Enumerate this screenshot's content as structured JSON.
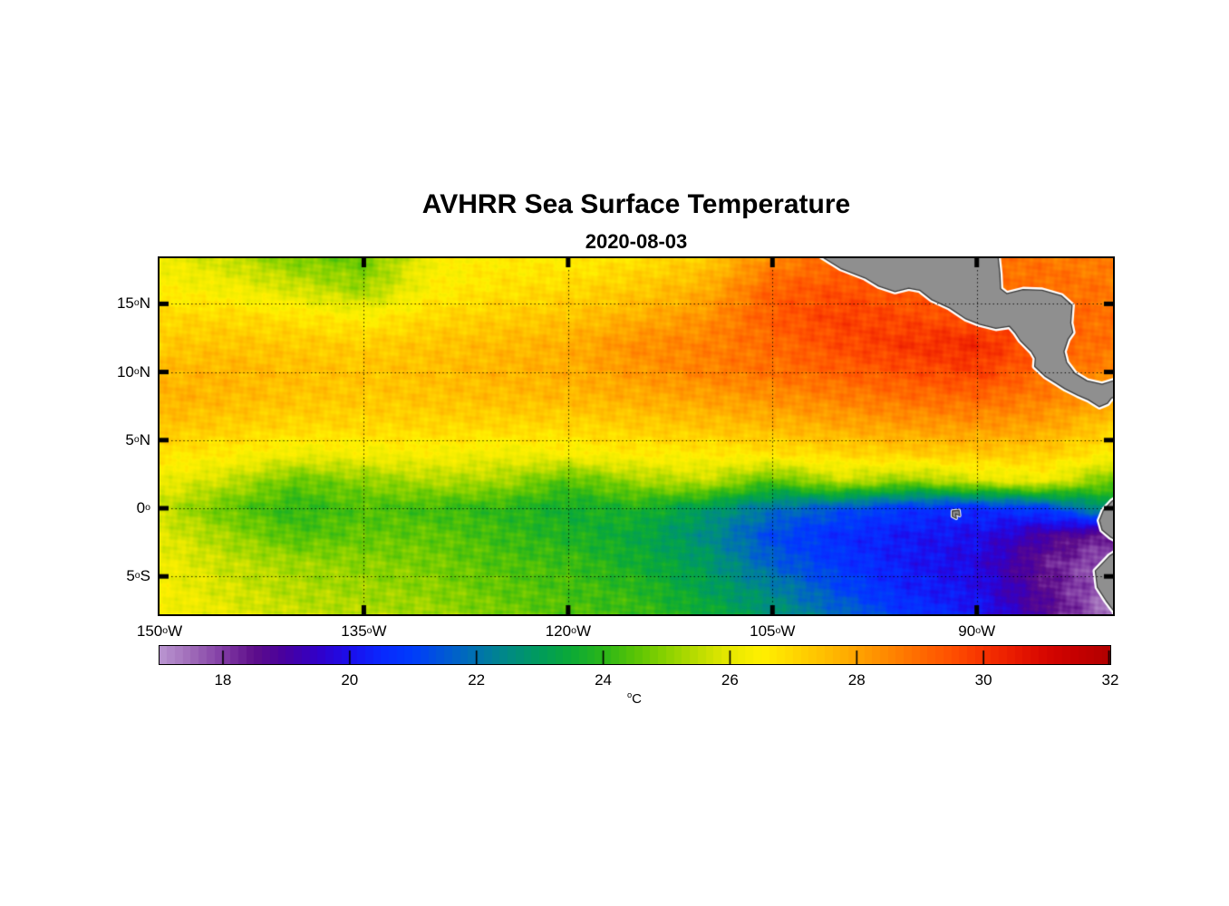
{
  "chart_data": {
    "type": "heatmap",
    "title": "AVHRR Sea Surface Temperature",
    "subtitle": "2020-08-03",
    "unit": {
      "sup": "o",
      "text": "C"
    },
    "degree_char": "o",
    "lon_range": [
      -150,
      -80
    ],
    "lat_range": [
      18.35,
      -7.78
    ],
    "grid_lons": [
      -150,
      -145,
      -140,
      -135,
      -130,
      -125,
      -120,
      -115,
      -110,
      -105,
      -100,
      -95,
      -90,
      -85,
      -80
    ],
    "grid_lats": [
      18.4,
      16,
      14,
      12,
      10,
      8,
      6,
      4,
      2,
      0,
      -2,
      -4,
      -6,
      -7.8
    ],
    "sst_grid": [
      [
        26.2,
        25.6,
        24.8,
        24.6,
        26.3,
        26.6,
        26.5,
        26.8,
        27.2,
        28.5,
        29.0,
        29.0,
        28.8,
        28.8,
        28.6
      ],
      [
        26.5,
        26.3,
        25.8,
        25.2,
        26.5,
        26.8,
        27.0,
        27.3,
        27.8,
        29.2,
        29.5,
        29.3,
        29.0,
        29.0,
        28.8
      ],
      [
        27.0,
        27.0,
        26.8,
        26.5,
        27.0,
        27.2,
        27.4,
        27.8,
        28.3,
        29.3,
        29.8,
        29.6,
        29.5,
        29.2,
        28.9
      ],
      [
        27.3,
        27.4,
        27.3,
        27.2,
        27.4,
        27.6,
        27.8,
        28.4,
        28.6,
        29.0,
        29.6,
        30.0,
        30.2,
        29.3,
        28.8
      ],
      [
        27.6,
        27.7,
        27.5,
        27.4,
        27.5,
        27.7,
        27.8,
        28.2,
        28.6,
        28.9,
        29.2,
        29.5,
        29.8,
        29.0,
        28.5
      ],
      [
        27.8,
        27.6,
        27.4,
        27.3,
        27.4,
        27.5,
        27.6,
        27.8,
        28.0,
        28.3,
        28.6,
        28.9,
        29.0,
        28.6,
        28.0
      ],
      [
        27.4,
        27.2,
        27.0,
        27.0,
        27.0,
        27.0,
        27.0,
        27.2,
        27.4,
        27.6,
        27.9,
        28.1,
        28.2,
        28.0,
        27.2
      ],
      [
        26.8,
        26.6,
        26.2,
        26.3,
        26.4,
        26.2,
        26.4,
        26.6,
        26.6,
        26.8,
        27.0,
        27.2,
        27.3,
        27.2,
        26.6
      ],
      [
        26.2,
        25.6,
        24.6,
        25.0,
        25.4,
        25.3,
        24.4,
        25.2,
        25.6,
        24.4,
        25.6,
        25.0,
        25.8,
        26.2,
        24.6
      ],
      [
        25.6,
        24.6,
        24.0,
        24.4,
        24.2,
        24.0,
        23.6,
        23.8,
        23.0,
        22.0,
        21.4,
        20.8,
        20.6,
        21.0,
        23.0
      ],
      [
        26.0,
        25.2,
        24.4,
        24.6,
        24.6,
        24.2,
        23.8,
        23.4,
        22.6,
        21.2,
        20.6,
        20.2,
        20.0,
        19.0,
        18.2
      ],
      [
        26.2,
        25.6,
        25.2,
        25.0,
        24.8,
        24.4,
        24.2,
        23.6,
        23.0,
        21.6,
        20.8,
        20.2,
        19.8,
        18.4,
        17.6
      ],
      [
        26.3,
        25.8,
        25.4,
        25.2,
        25.0,
        24.6,
        24.3,
        24.0,
        23.2,
        22.4,
        21.2,
        20.4,
        20.0,
        18.6,
        17.4
      ],
      [
        26.4,
        26.0,
        25.6,
        25.4,
        25.2,
        24.8,
        24.4,
        24.2,
        23.6,
        22.8,
        21.8,
        20.8,
        20.2,
        18.8,
        17.2
      ]
    ],
    "gridlines": {
      "lons": [
        -135,
        -120,
        -105,
        -90
      ],
      "lats": [
        15,
        10,
        5,
        0,
        -5
      ]
    },
    "x_ticks": [
      {
        "v": -150,
        "num": "150",
        "suffix": "W"
      },
      {
        "v": -135,
        "num": "135",
        "suffix": "W"
      },
      {
        "v": -120,
        "num": "120",
        "suffix": "W"
      },
      {
        "v": -105,
        "num": "105",
        "suffix": "W"
      },
      {
        "v": -90,
        "num": "90",
        "suffix": "W"
      }
    ],
    "y_ticks": [
      {
        "v": 15,
        "num": "15",
        "suffix": "N"
      },
      {
        "v": 10,
        "num": "10",
        "suffix": "N"
      },
      {
        "v": 5,
        "num": "5",
        "suffix": "N"
      },
      {
        "v": 0,
        "num": "0",
        "suffix": ""
      },
      {
        "v": -5,
        "num": "5",
        "suffix": "S"
      }
    ],
    "colorbar": {
      "min": 17,
      "max": 32,
      "segments": 120,
      "ticks": [
        18,
        20,
        22,
        24,
        26,
        28,
        30,
        32
      ],
      "stops": [
        [
          17.0,
          187,
          151,
          209
        ],
        [
          17.5,
          160,
          108,
          185
        ],
        [
          18.0,
          130,
          60,
          165
        ],
        [
          18.5,
          94,
          14,
          138
        ],
        [
          19.0,
          72,
          0,
          160
        ],
        [
          19.5,
          50,
          0,
          200
        ],
        [
          20.0,
          28,
          14,
          236
        ],
        [
          20.5,
          10,
          40,
          255
        ],
        [
          21.0,
          0,
          60,
          252
        ],
        [
          21.5,
          0,
          88,
          215
        ],
        [
          22.0,
          0,
          115,
          175
        ],
        [
          22.5,
          0,
          138,
          133
        ],
        [
          23.0,
          0,
          156,
          92
        ],
        [
          23.5,
          12,
          170,
          55
        ],
        [
          24.0,
          42,
          182,
          26
        ],
        [
          24.5,
          88,
          196,
          6
        ],
        [
          25.0,
          138,
          210,
          0
        ],
        [
          25.5,
          188,
          221,
          0
        ],
        [
          26.0,
          232,
          233,
          0
        ],
        [
          26.5,
          255,
          240,
          0
        ],
        [
          27.0,
          255,
          216,
          0
        ],
        [
          27.5,
          255,
          191,
          0
        ],
        [
          28.0,
          255,
          164,
          0
        ],
        [
          28.5,
          255,
          136,
          0
        ],
        [
          29.0,
          255,
          107,
          0
        ],
        [
          29.5,
          255,
          80,
          0
        ],
        [
          30.0,
          247,
          51,
          0
        ],
        [
          30.5,
          233,
          26,
          0
        ],
        [
          31.0,
          214,
          6,
          0
        ],
        [
          31.5,
          196,
          0,
          0
        ],
        [
          32.0,
          178,
          0,
          0
        ]
      ]
    },
    "land": {
      "central_america": [
        [
          -101.6,
          18.6
        ],
        [
          -100.0,
          17.6
        ],
        [
          -98.2,
          16.9
        ],
        [
          -97.2,
          16.3
        ],
        [
          -96.0,
          15.9
        ],
        [
          -95.0,
          16.15
        ],
        [
          -94.2,
          16.0
        ],
        [
          -93.3,
          15.3
        ],
        [
          -92.0,
          14.7
        ],
        [
          -90.8,
          13.9
        ],
        [
          -89.8,
          13.5
        ],
        [
          -88.6,
          13.2
        ],
        [
          -87.6,
          13.35
        ],
        [
          -87.2,
          12.9
        ],
        [
          -86.8,
          12.3
        ],
        [
          -86.0,
          11.5
        ],
        [
          -85.7,
          11.0
        ],
        [
          -85.75,
          10.4
        ],
        [
          -85.0,
          9.7
        ],
        [
          -84.2,
          9.2
        ],
        [
          -83.5,
          8.75
        ],
        [
          -82.6,
          8.3
        ],
        [
          -81.8,
          7.95
        ],
        [
          -81.0,
          7.45
        ],
        [
          -80.4,
          7.7
        ],
        [
          -80.1,
          8.1
        ],
        [
          -79.5,
          8.25
        ],
        [
          -79.5,
          9.5
        ],
        [
          -80.8,
          9.1
        ],
        [
          -81.9,
          9.35
        ],
        [
          -82.8,
          9.9
        ],
        [
          -83.4,
          10.7
        ],
        [
          -83.6,
          11.5
        ],
        [
          -83.3,
          12.4
        ],
        [
          -82.95,
          12.9
        ],
        [
          -83.1,
          13.6
        ],
        [
          -83.0,
          14.9
        ],
        [
          -83.8,
          15.6
        ],
        [
          -85.2,
          16.0
        ],
        [
          -86.6,
          16.05
        ],
        [
          -87.8,
          15.75
        ],
        [
          -88.25,
          16.1
        ],
        [
          -88.3,
          17.2
        ],
        [
          -88.45,
          18.6
        ]
      ],
      "south_america": [
        [
          -79.55,
          0.9
        ],
        [
          -80.1,
          0.5
        ],
        [
          -80.7,
          -0.15
        ],
        [
          -81.0,
          -0.9
        ],
        [
          -80.8,
          -1.6
        ],
        [
          -80.2,
          -2.1
        ],
        [
          -79.65,
          -2.4
        ],
        [
          -79.65,
          -3.1
        ],
        [
          -80.25,
          -3.5
        ],
        [
          -81.3,
          -4.6
        ],
        [
          -81.15,
          -5.8
        ],
        [
          -80.5,
          -6.8
        ],
        [
          -79.9,
          -7.6
        ],
        [
          -79.55,
          -8.4
        ],
        [
          -78.5,
          -8.6
        ],
        [
          -78.5,
          1.2
        ]
      ],
      "galapagos": [
        [
          -91.8,
          -0.2
        ],
        [
          -91.3,
          -0.15
        ],
        [
          -91.25,
          -0.55
        ],
        [
          -91.55,
          -0.4
        ],
        [
          -91.5,
          -0.75
        ],
        [
          -91.8,
          -0.6
        ]
      ]
    },
    "colors": {
      "land": "#8f8f8f",
      "coast_halo": "#ffffff",
      "coast_line": "#3a3a3a",
      "grid": "#000000",
      "tick": "#000000"
    }
  }
}
